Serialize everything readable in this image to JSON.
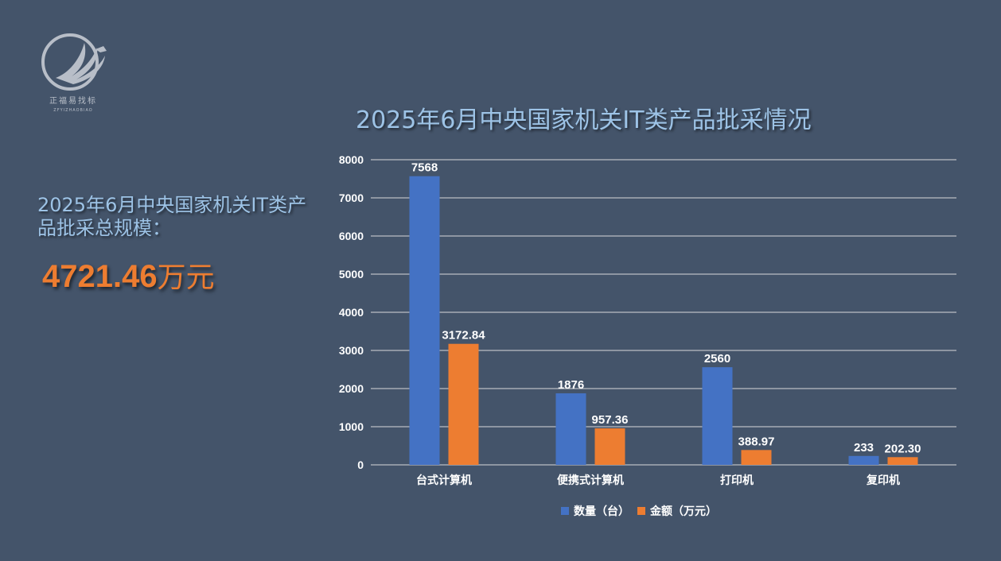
{
  "logo": {
    "text_cn": "正福易找标",
    "text_en": "ZFYIZHAOBIAO",
    "colors": {
      "ring": "#b8bec8",
      "bird": "#b8bec8"
    }
  },
  "summary": {
    "label": "2025年6月中央国家机关IT类产品批采总规模：",
    "value": "4721.46",
    "unit": "万元"
  },
  "colors": {
    "background": "#44546a",
    "title": "#9dc3e6",
    "accent": "#ed7d31",
    "series_quantity": "#4472c4",
    "series_amount": "#ed7d31"
  },
  "chart_data": {
    "type": "bar",
    "title": "2025年6月中央国家机关IT类产品批采情况",
    "categories": [
      "台式计算机",
      "便携式计算机",
      "打印机",
      "复印机"
    ],
    "series": [
      {
        "name": "数量（台）",
        "values": [
          7568,
          1876,
          2560,
          233
        ],
        "labels": [
          "7568",
          "1876",
          "2560",
          "233"
        ]
      },
      {
        "name": "金额（万元）",
        "values": [
          3172.84,
          957.36,
          388.97,
          202.3
        ],
        "labels": [
          "3172.84",
          "957.36",
          "388.97",
          "202.30"
        ]
      }
    ],
    "ylim": [
      0,
      8000
    ],
    "yticks": [
      0,
      1000,
      2000,
      3000,
      4000,
      5000,
      6000,
      7000,
      8000
    ],
    "grid": true,
    "legend": "bottom"
  }
}
